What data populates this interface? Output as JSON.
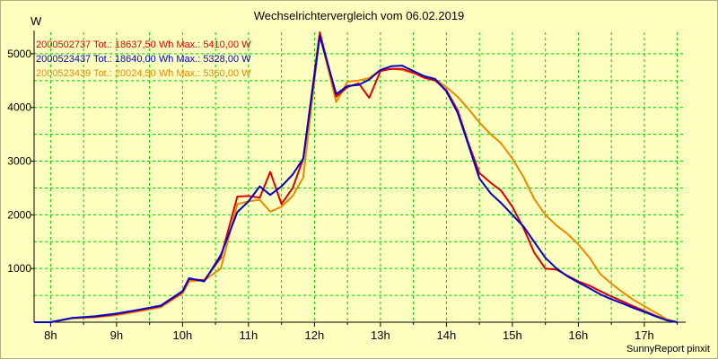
{
  "chart_data": {
    "type": "line",
    "title": "Wechselrichtervergleich vom 06.02.2019",
    "ylabel": "W",
    "xlabel": "",
    "footer": "SunnyReport pinxit",
    "xlim": [
      7.75,
      17.6
    ],
    "ylim": [
      0,
      5400
    ],
    "x_ticks": [
      8,
      9,
      10,
      11,
      12,
      13,
      14,
      15,
      16,
      17
    ],
    "x_tick_labels": [
      "8h",
      "9h",
      "10h",
      "11h",
      "12h",
      "13h",
      "14h",
      "15h",
      "16h",
      "17h"
    ],
    "y_ticks": [
      1000,
      2000,
      3000,
      4000,
      5000
    ],
    "y_tick_labels": [
      "1000",
      "2000",
      "3000",
      "4000",
      "5000"
    ],
    "grid": true,
    "legend_position": "top-left",
    "colors": {
      "background": "#ffffc0",
      "grid": "#00cc00",
      "axis": "#000000"
    },
    "series": [
      {
        "name": "2000502737 Tot.: 18637,50 Wh Max.: 5410,00 W",
        "color": "#dd0000",
        "x": [
          7.75,
          8.0,
          8.33,
          8.67,
          9.0,
          9.33,
          9.67,
          10.0,
          10.1,
          10.33,
          10.58,
          10.83,
          11.0,
          11.17,
          11.33,
          11.5,
          11.67,
          11.83,
          12.08,
          12.33,
          12.5,
          12.67,
          12.83,
          13.0,
          13.17,
          13.33,
          13.5,
          13.67,
          13.83,
          14.0,
          14.17,
          14.33,
          14.5,
          14.67,
          14.83,
          15.0,
          15.17,
          15.33,
          15.5,
          15.67,
          15.83,
          16.0,
          16.17,
          16.33,
          16.5,
          16.67,
          16.83,
          17.0,
          17.17,
          17.33,
          17.5
        ],
        "y": [
          0,
          0,
          80,
          100,
          150,
          220,
          300,
          560,
          800,
          780,
          1200,
          2340,
          2350,
          2320,
          2800,
          2200,
          2500,
          3050,
          5400,
          4200,
          4380,
          4450,
          4180,
          4680,
          4720,
          4720,
          4650,
          4550,
          4500,
          4320,
          3950,
          3350,
          2780,
          2600,
          2450,
          2150,
          1750,
          1300,
          1000,
          980,
          870,
          760,
          680,
          580,
          480,
          390,
          300,
          210,
          120,
          40,
          0
        ]
      },
      {
        "name": "2000523437 Tot.: 18640,00 Wh Max.: 5328,00 W",
        "color": "#0000cc",
        "x": [
          7.75,
          8.0,
          8.33,
          8.67,
          9.0,
          9.33,
          9.67,
          10.0,
          10.1,
          10.33,
          10.58,
          10.83,
          11.0,
          11.17,
          11.33,
          11.5,
          11.67,
          11.83,
          12.08,
          12.33,
          12.5,
          12.67,
          12.83,
          13.0,
          13.17,
          13.33,
          13.5,
          13.67,
          13.83,
          14.0,
          14.17,
          14.33,
          14.5,
          14.67,
          14.83,
          15.0,
          15.17,
          15.33,
          15.5,
          15.67,
          15.83,
          16.0,
          16.17,
          16.33,
          16.5,
          16.67,
          16.83,
          17.0,
          17.17,
          17.33,
          17.5
        ],
        "y": [
          0,
          0,
          80,
          110,
          160,
          230,
          310,
          580,
          820,
          760,
          1250,
          2050,
          2250,
          2530,
          2370,
          2530,
          2750,
          3050,
          5330,
          4250,
          4400,
          4420,
          4520,
          4700,
          4770,
          4780,
          4680,
          4580,
          4530,
          4300,
          3900,
          3320,
          2680,
          2400,
          2220,
          2000,
          1780,
          1500,
          1200,
          1000,
          860,
          740,
          630,
          520,
          430,
          350,
          270,
          190,
          110,
          40,
          0
        ]
      },
      {
        "name": "2000523439 Tot.: 20024,50 Wh Max.: 5360,00 W",
        "color": "#ee8800",
        "x": [
          7.75,
          8.0,
          8.33,
          8.67,
          9.0,
          9.33,
          9.67,
          10.0,
          10.1,
          10.33,
          10.58,
          10.83,
          11.0,
          11.17,
          11.33,
          11.5,
          11.67,
          11.83,
          12.08,
          12.33,
          12.5,
          12.67,
          12.83,
          13.0,
          13.17,
          13.33,
          13.5,
          13.67,
          13.83,
          14.0,
          14.17,
          14.33,
          14.5,
          14.67,
          14.83,
          15.0,
          15.17,
          15.33,
          15.5,
          15.67,
          15.83,
          16.0,
          16.17,
          16.33,
          16.5,
          16.67,
          16.83,
          17.0,
          17.17,
          17.33,
          17.5
        ],
        "y": [
          0,
          0,
          70,
          90,
          130,
          200,
          280,
          540,
          760,
          780,
          1000,
          2200,
          2250,
          2280,
          2060,
          2150,
          2350,
          2700,
          5360,
          4100,
          4480,
          4500,
          4550,
          4700,
          4720,
          4700,
          4640,
          4570,
          4520,
          4380,
          4200,
          3980,
          3720,
          3500,
          3330,
          3050,
          2700,
          2300,
          2000,
          1800,
          1650,
          1450,
          1200,
          900,
          720,
          560,
          420,
          300,
          180,
          60,
          0
        ]
      }
    ]
  }
}
